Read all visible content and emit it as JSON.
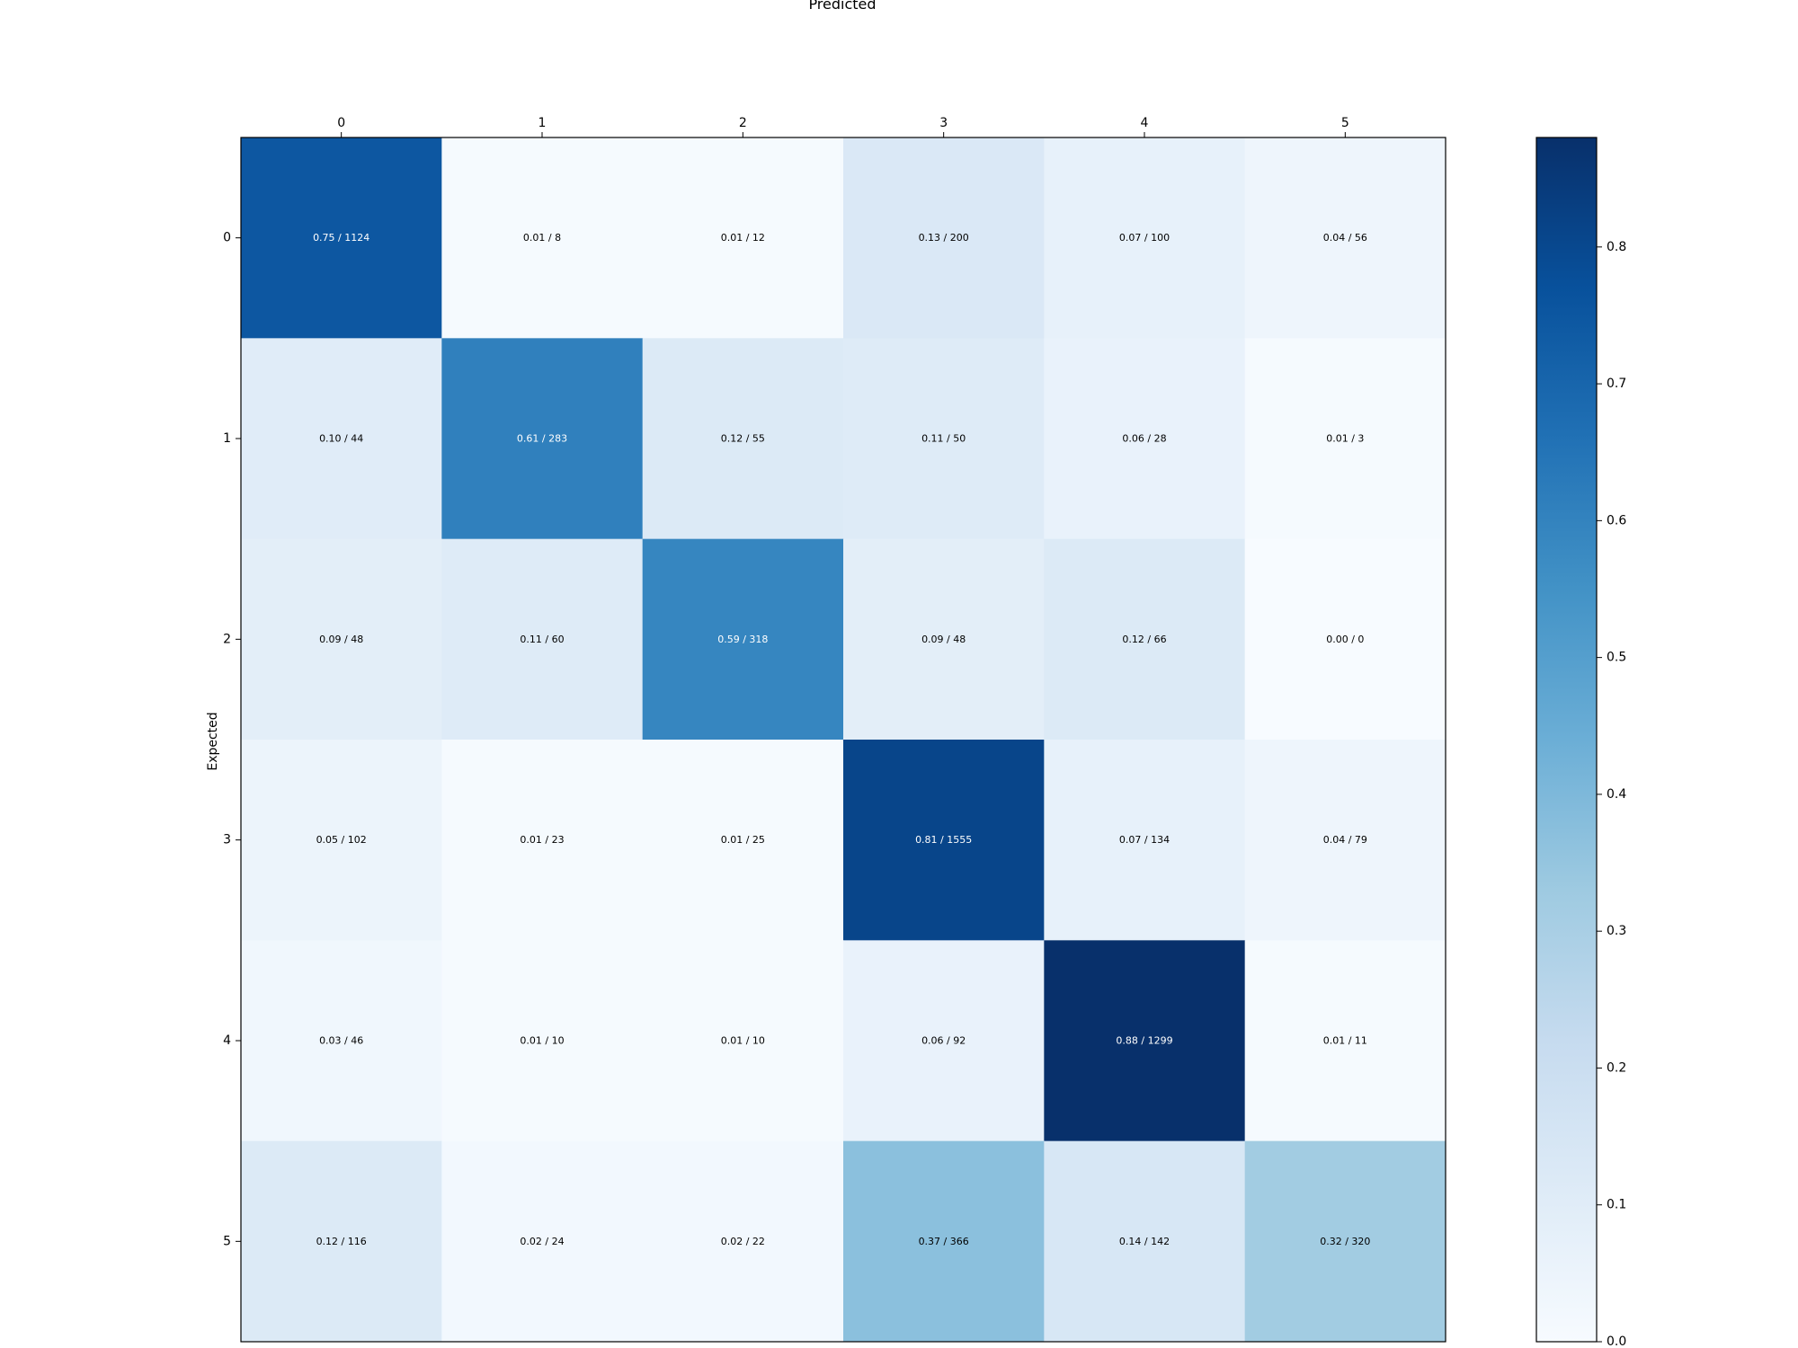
{
  "chart_data": {
    "type": "heatmap",
    "title": "Predicted",
    "xlabel": "Predicted",
    "ylabel": "Expected",
    "x_categories": [
      "0",
      "1",
      "2",
      "3",
      "4",
      "5"
    ],
    "y_categories": [
      "0",
      "1",
      "2",
      "3",
      "4",
      "5"
    ],
    "values": [
      [
        0.75,
        0.01,
        0.01,
        0.13,
        0.07,
        0.04
      ],
      [
        0.1,
        0.61,
        0.12,
        0.11,
        0.06,
        0.01
      ],
      [
        0.09,
        0.11,
        0.59,
        0.09,
        0.12,
        0.0
      ],
      [
        0.05,
        0.01,
        0.01,
        0.81,
        0.07,
        0.04
      ],
      [
        0.03,
        0.01,
        0.01,
        0.06,
        0.88,
        0.01
      ],
      [
        0.12,
        0.02,
        0.02,
        0.37,
        0.14,
        0.32
      ]
    ],
    "counts": [
      [
        1124,
        8,
        12,
        200,
        100,
        56
      ],
      [
        44,
        283,
        55,
        50,
        28,
        3
      ],
      [
        48,
        60,
        318,
        48,
        66,
        0
      ],
      [
        102,
        23,
        25,
        1555,
        134,
        79
      ],
      [
        46,
        10,
        10,
        92,
        1299,
        11
      ],
      [
        116,
        24,
        22,
        366,
        142,
        320
      ]
    ],
    "cell_labels": [
      [
        "0.75 / 1124",
        "0.01 / 8",
        "0.01 / 12",
        "0.13 / 200",
        "0.07 / 100",
        "0.04 / 56"
      ],
      [
        "0.10 / 44",
        "0.61 / 283",
        "0.12 / 55",
        "0.11 / 50",
        "0.06 / 28",
        "0.01 / 3"
      ],
      [
        "0.09 / 48",
        "0.11 / 60",
        "0.59 / 318",
        "0.09 / 48",
        "0.12 / 66",
        "0.00 / 0"
      ],
      [
        "0.05 / 102",
        "0.01 / 23",
        "0.01 / 25",
        "0.81 / 1555",
        "0.07 / 134",
        "0.04 / 79"
      ],
      [
        "0.03 / 46",
        "0.01 / 10",
        "0.01 / 10",
        "0.06 / 92",
        "0.88 / 1299",
        "0.01 / 11"
      ],
      [
        "0.12 / 116",
        "0.02 / 24",
        "0.02 / 22",
        "0.37 / 366",
        "0.14 / 142",
        "0.32 / 320"
      ]
    ],
    "colormap": "Blues",
    "color_range": [
      0.0,
      0.88
    ],
    "colorbar_ticks": [
      "0.0",
      "0.1",
      "0.2",
      "0.3",
      "0.4",
      "0.5",
      "0.6",
      "0.7",
      "0.8"
    ],
    "colorbar_tick_values": [
      0.0,
      0.1,
      0.2,
      0.3,
      0.4,
      0.5,
      0.6,
      0.7,
      0.8
    ],
    "x_ticks_position": "top",
    "colorbar_position": "right",
    "grid": false
  }
}
